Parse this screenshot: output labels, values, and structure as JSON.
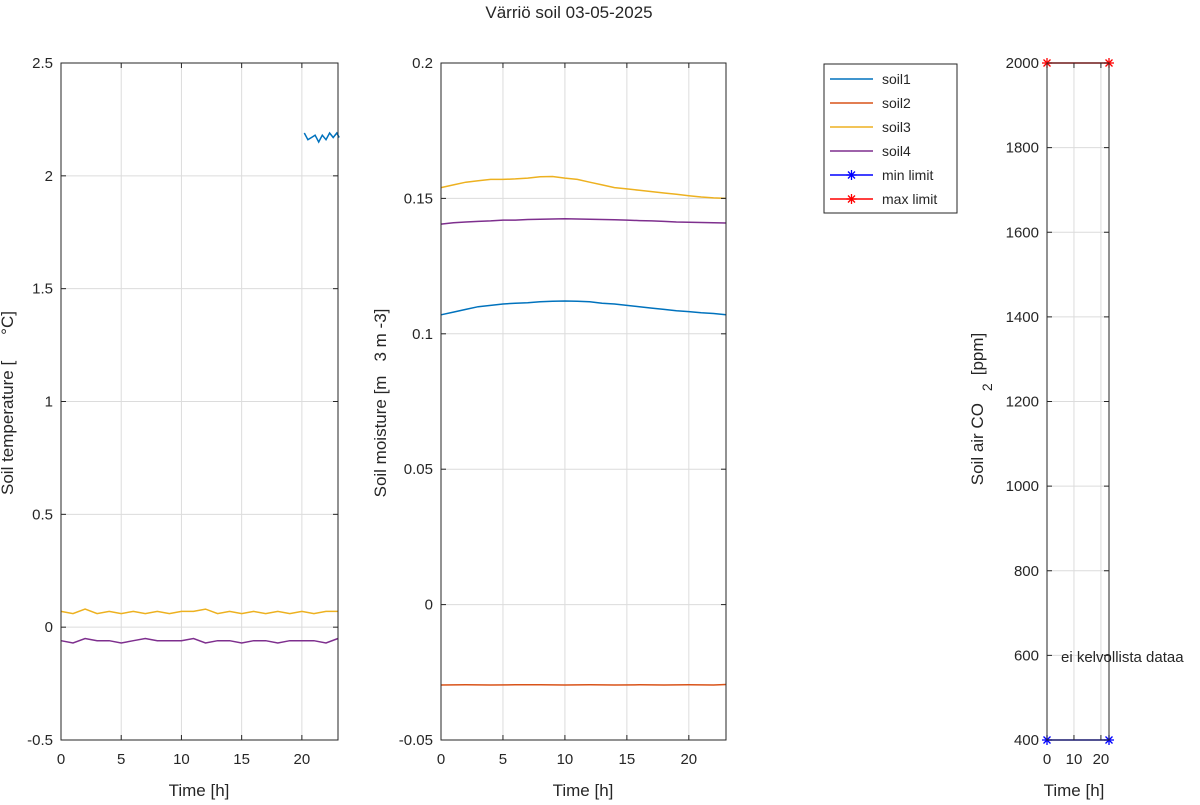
{
  "title": "Värriö soil 03-05-2025",
  "colors": {
    "soil1": "#0072bd",
    "soil2": "#d95319",
    "soil3": "#edb120",
    "soil4": "#7e2f8e",
    "min_limit": "#0000ff",
    "max_limit": "#ff0000"
  },
  "legend": [
    {
      "key": "soil1",
      "label": "soil1",
      "marker": false
    },
    {
      "key": "soil2",
      "label": "soil2",
      "marker": false
    },
    {
      "key": "soil3",
      "label": "soil3",
      "marker": false
    },
    {
      "key": "soil4",
      "label": "soil4",
      "marker": false
    },
    {
      "key": "min_limit",
      "label": "min limit",
      "marker": true
    },
    {
      "key": "max_limit",
      "label": "max limit",
      "marker": true
    }
  ],
  "no_data_note": "ei kelvollista dataa",
  "chart_data": [
    {
      "type": "line",
      "xlabel": "Time [h]",
      "ylabel": "Soil temperature [",
      "ylabel_unit": "°C]",
      "xlim": [
        0,
        23
      ],
      "ylim": [
        -0.5,
        2.5
      ],
      "xticks": [
        0,
        5,
        10,
        15,
        20
      ],
      "yticks": [
        -0.5,
        0,
        0.5,
        1,
        1.5,
        2,
        2.5
      ],
      "ytick_labels": [
        "-0.5",
        "0",
        "0.5",
        "1",
        "1.5",
        "2",
        "2.5"
      ],
      "grid": true,
      "series": [
        {
          "key": "soil1",
          "x": [
            20.2,
            20.5,
            20.8,
            21.1,
            21.4,
            21.7,
            22.0,
            22.3,
            22.6,
            22.9,
            23.1
          ],
          "y": [
            2.19,
            2.16,
            2.17,
            2.18,
            2.15,
            2.18,
            2.16,
            2.19,
            2.17,
            2.19,
            2.17
          ]
        },
        {
          "key": "soil3",
          "x": [
            0,
            1,
            2,
            3,
            4,
            5,
            6,
            7,
            8,
            9,
            10,
            11,
            12,
            13,
            14,
            15,
            16,
            17,
            18,
            19,
            20,
            21,
            22,
            23
          ],
          "y": [
            0.07,
            0.06,
            0.08,
            0.06,
            0.07,
            0.06,
            0.07,
            0.06,
            0.07,
            0.06,
            0.07,
            0.07,
            0.08,
            0.06,
            0.07,
            0.06,
            0.07,
            0.06,
            0.07,
            0.06,
            0.07,
            0.06,
            0.07,
            0.07
          ]
        },
        {
          "key": "soil4",
          "x": [
            0,
            1,
            2,
            3,
            4,
            5,
            6,
            7,
            8,
            9,
            10,
            11,
            12,
            13,
            14,
            15,
            16,
            17,
            18,
            19,
            20,
            21,
            22,
            23
          ],
          "y": [
            -0.06,
            -0.07,
            -0.05,
            -0.06,
            -0.06,
            -0.07,
            -0.06,
            -0.05,
            -0.06,
            -0.06,
            -0.06,
            -0.05,
            -0.07,
            -0.06,
            -0.06,
            -0.07,
            -0.06,
            -0.06,
            -0.07,
            -0.06,
            -0.06,
            -0.06,
            -0.07,
            -0.05
          ]
        }
      ]
    },
    {
      "type": "line",
      "xlabel": "Time [h]",
      "ylabel": "Soil moisture [m",
      "ylabel_unit": "3 m -3]",
      "xlim": [
        0,
        23
      ],
      "ylim": [
        -0.05,
        0.2
      ],
      "xticks": [
        0,
        5,
        10,
        15,
        20
      ],
      "yticks": [
        -0.05,
        0,
        0.05,
        0.1,
        0.15,
        0.2
      ],
      "ytick_labels": [
        "-0.05",
        "0",
        "0.05",
        "0.1",
        "0.15",
        "0.2"
      ],
      "grid": true,
      "series": [
        {
          "key": "soil1",
          "x": [
            0,
            1,
            2,
            3,
            4,
            5,
            6,
            7,
            8,
            9,
            10,
            11,
            12,
            13,
            14,
            15,
            16,
            17,
            18,
            19,
            20,
            21,
            22,
            23
          ],
          "y": [
            0.107,
            0.108,
            0.109,
            0.11,
            0.1105,
            0.111,
            0.1113,
            0.1115,
            0.1118,
            0.112,
            0.1121,
            0.112,
            0.1118,
            0.1113,
            0.111,
            0.1105,
            0.11,
            0.1095,
            0.109,
            0.1085,
            0.1082,
            0.1078,
            0.1075,
            0.107
          ]
        },
        {
          "key": "soil2",
          "x": [
            0,
            2,
            4,
            6,
            8,
            10,
            12,
            14,
            16,
            18,
            20,
            22,
            23
          ],
          "y": [
            -0.0297,
            -0.0296,
            -0.0297,
            -0.0296,
            -0.0296,
            -0.0297,
            -0.0296,
            -0.0297,
            -0.0296,
            -0.0297,
            -0.0296,
            -0.0297,
            -0.0295
          ]
        },
        {
          "key": "soil3",
          "x": [
            0,
            1,
            2,
            3,
            4,
            5,
            6,
            7,
            8,
            9,
            10,
            11,
            12,
            13,
            14,
            15,
            16,
            17,
            18,
            19,
            20,
            21,
            22,
            23
          ],
          "y": [
            0.154,
            0.155,
            0.156,
            0.1565,
            0.157,
            0.157,
            0.1572,
            0.1575,
            0.158,
            0.1581,
            0.1575,
            0.157,
            0.156,
            0.155,
            0.154,
            0.1535,
            0.153,
            0.1525,
            0.152,
            0.1515,
            0.151,
            0.1505,
            0.1502,
            0.15
          ]
        },
        {
          "key": "soil4",
          "x": [
            0,
            1,
            2,
            3,
            4,
            5,
            6,
            7,
            8,
            9,
            10,
            11,
            12,
            13,
            14,
            15,
            16,
            17,
            18,
            19,
            20,
            21,
            22,
            23
          ],
          "y": [
            0.1405,
            0.141,
            0.1413,
            0.1415,
            0.1417,
            0.142,
            0.142,
            0.1422,
            0.1423,
            0.1424,
            0.1425,
            0.1424,
            0.1423,
            0.1422,
            0.1421,
            0.142,
            0.1418,
            0.1417,
            0.1415,
            0.1413,
            0.1412,
            0.1411,
            0.141,
            0.1409
          ]
        }
      ]
    },
    {
      "type": "line",
      "xlabel": "Time [h]",
      "ylabel": "Soil air CO",
      "ylabel_sub": "2",
      "ylabel_unit": "[ppm]",
      "xlim": [
        0,
        23
      ],
      "ylim": [
        400,
        2000
      ],
      "xticks": [
        0,
        10,
        20
      ],
      "yticks": [
        400,
        600,
        800,
        1000,
        1200,
        1400,
        1600,
        1800,
        2000
      ],
      "ytick_labels": [
        "400",
        "600",
        "800",
        "1000",
        "1200",
        "1400",
        "1600",
        "1800",
        "2000"
      ],
      "grid": true,
      "series": [
        {
          "key": "min_limit",
          "x": [
            0,
            23
          ],
          "y": [
            400,
            400
          ],
          "marker": "asterisk"
        },
        {
          "key": "max_limit",
          "x": [
            0,
            23
          ],
          "y": [
            2000,
            2000
          ],
          "marker": "asterisk"
        }
      ]
    }
  ]
}
